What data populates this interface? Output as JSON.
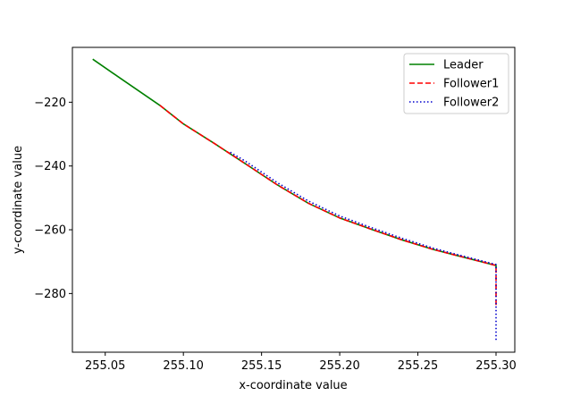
{
  "chart_data": {
    "type": "line",
    "title": "",
    "xlabel": "x-coordinate value",
    "ylabel": "y-coordinate value",
    "xlim": [
      255.029,
      255.312
    ],
    "ylim": [
      -298.4,
      -202.8
    ],
    "xticks": [
      255.05,
      255.1,
      255.15,
      255.2,
      255.25,
      255.3
    ],
    "xtick_labels": [
      "255.05",
      "255.10",
      "255.15",
      "255.20",
      "255.25",
      "255.30"
    ],
    "yticks": [
      -220,
      -240,
      -260,
      -280
    ],
    "ytick_labels": [
      "−220",
      "−240",
      "−260",
      "−280"
    ],
    "grid": false,
    "legend_position": "top-right",
    "series": [
      {
        "name": "Leader",
        "color": "#008000",
        "style": "solid",
        "x": [
          255.042,
          255.06,
          255.085,
          255.1,
          255.12,
          255.14,
          255.16,
          255.18,
          255.2,
          255.22,
          255.24,
          255.26,
          255.28,
          255.3,
          255.3
        ],
        "y": [
          -206.5,
          -212.6,
          -221.0,
          -226.8,
          -233.0,
          -239.4,
          -245.9,
          -251.7,
          -256.3,
          -259.8,
          -263.2,
          -266.2,
          -268.7,
          -271.2,
          -272.0
        ]
      },
      {
        "name": "Follower1",
        "color": "#ff0000",
        "style": "dashed",
        "x": [
          255.085,
          255.1,
          255.12,
          255.14,
          255.16,
          255.18,
          255.2,
          255.22,
          255.24,
          255.26,
          255.28,
          255.3,
          255.3
        ],
        "y": [
          -221.0,
          -226.8,
          -233.0,
          -239.4,
          -245.9,
          -251.7,
          -256.3,
          -259.8,
          -263.2,
          -266.2,
          -268.7,
          -271.2,
          -284.5
        ]
      },
      {
        "name": "Follower2",
        "color": "#0000cd",
        "style": "dotted",
        "x": [
          255.13,
          255.14,
          255.16,
          255.18,
          255.2,
          255.22,
          255.24,
          255.26,
          255.28,
          255.3,
          255.3
        ],
        "y": [
          -235.7,
          -238.6,
          -245.2,
          -251.0,
          -255.7,
          -259.3,
          -262.7,
          -265.8,
          -268.4,
          -270.9,
          -295.0
        ]
      }
    ]
  }
}
